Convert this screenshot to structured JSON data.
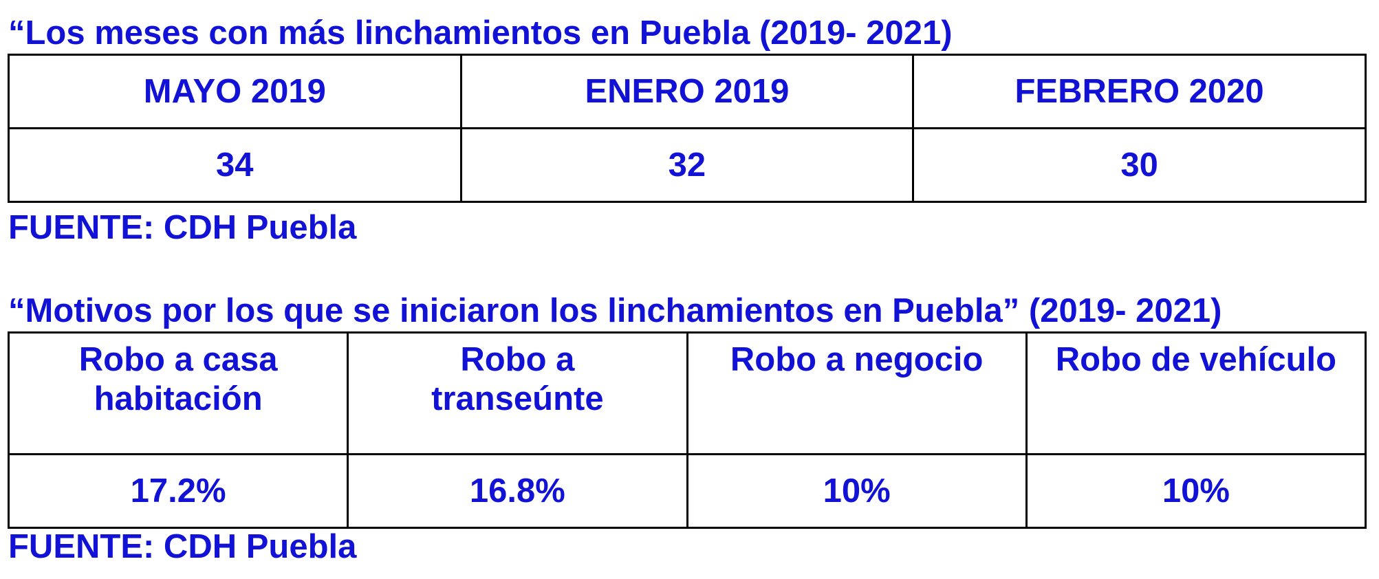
{
  "table1": {
    "title": "“Los meses con más linchamientos en Puebla (2019- 2021)",
    "headers": [
      "MAYO 2019",
      "ENERO 2019",
      "FEBRERO 2020"
    ],
    "values": [
      "34",
      "32",
      "30"
    ],
    "source": "FUENTE: CDH Puebla"
  },
  "table2": {
    "title": "“Motivos por los que se iniciaron los linchamientos en Puebla” (2019- 2021)",
    "headers": [
      {
        "line1": "Robo a casa",
        "line2": "habitación"
      },
      {
        "line1": "Robo a",
        "line2": "transeúnte"
      },
      {
        "line1": "Robo a negocio",
        "line2": ""
      },
      {
        "line1": "Robo de vehículo",
        "line2": ""
      }
    ],
    "values": [
      "17.2%",
      "16.8%",
      "10%",
      "10%"
    ],
    "source": "FUENTE: CDH Puebla"
  },
  "colors": {
    "text": "#1212d6",
    "border": "#000000",
    "background": "#ffffff"
  }
}
